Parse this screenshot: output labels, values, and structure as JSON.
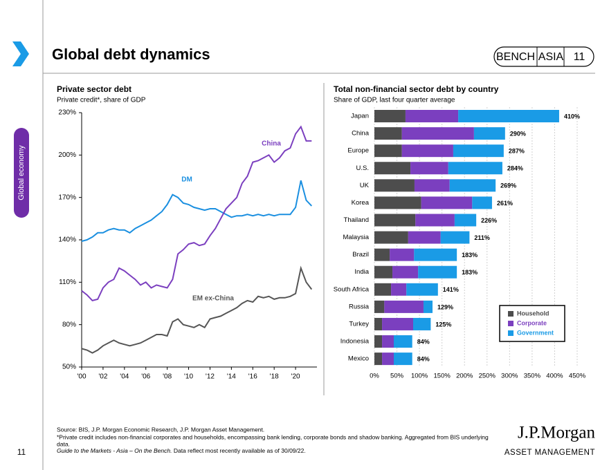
{
  "header": {
    "title": "Global debt dynamics",
    "badge": [
      "BENCH",
      "ASIA",
      "11"
    ]
  },
  "sidebar": {
    "section": "Global economy",
    "page_number": "11"
  },
  "footer": {
    "source": "Source: BIS, J.P. Morgan Economic Research, J.P. Morgan Asset Management.",
    "note": "*Private credit includes non-financial corporates and households, encompassing bank lending, corporate bonds and shadow banking. Aggregated from BIS underlying",
    "note_cont": "data.",
    "guide_italic": "Guide to the Markets - Asia – On the Bench.",
    "guide_rest": " Data reflect most recently available as of 30/09/22."
  },
  "logo": {
    "brand": "J.P.Morgan",
    "division": "ASSET MANAGEMENT"
  },
  "chart_data": [
    {
      "type": "line",
      "title": "Private sector debt",
      "subtitle": "Private credit*, share of GDP",
      "x": [
        2000,
        2000.5,
        2001,
        2001.5,
        2002,
        2002.5,
        2003,
        2003.5,
        2004,
        2004.5,
        2005,
        2005.5,
        2006,
        2006.5,
        2007,
        2007.5,
        2008,
        2008.5,
        2009,
        2009.5,
        2010,
        2010.5,
        2011,
        2011.5,
        2012,
        2012.5,
        2013,
        2013.5,
        2014,
        2014.5,
        2015,
        2015.5,
        2016,
        2016.5,
        2017,
        2017.5,
        2018,
        2018.5,
        2019,
        2019.5,
        2020,
        2020.5,
        2021,
        2021.5
      ],
      "series": [
        {
          "name": "DM",
          "color": "#1a8fe0",
          "values": [
            139,
            140,
            142,
            145,
            145,
            147,
            148,
            147,
            147,
            145,
            148,
            150,
            152,
            154,
            157,
            160,
            165,
            172,
            170,
            166,
            165,
            163,
            162,
            161,
            162,
            162,
            160,
            158,
            156,
            157,
            157,
            158,
            157,
            158,
            157,
            158,
            157,
            158,
            158,
            158,
            163,
            182,
            168,
            164
          ]
        },
        {
          "name": "China",
          "color": "#7b3fbf",
          "values": [
            104,
            101,
            97,
            98,
            106,
            110,
            112,
            120,
            118,
            115,
            112,
            108,
            110,
            106,
            108,
            107,
            106,
            112,
            130,
            133,
            137,
            138,
            136,
            137,
            143,
            148,
            155,
            162,
            166,
            170,
            180,
            185,
            195,
            196,
            198,
            200,
            195,
            198,
            203,
            205,
            215,
            220,
            210,
            210
          ]
        },
        {
          "name": "EM ex-China",
          "color": "#555555",
          "values": [
            63,
            62,
            60,
            62,
            65,
            67,
            69,
            67,
            66,
            65,
            66,
            67,
            69,
            71,
            73,
            73,
            72,
            82,
            84,
            80,
            79,
            78,
            80,
            78,
            84,
            85,
            86,
            88,
            90,
            92,
            95,
            97,
            96,
            100,
            99,
            100,
            98,
            99,
            99,
            100,
            102,
            120,
            110,
            105
          ]
        }
      ],
      "xlim": [
        2000,
        2022
      ],
      "xticks": [
        {
          "value": 2000,
          "label": "'00"
        },
        {
          "value": 2002,
          "label": "'02"
        },
        {
          "value": 2004,
          "label": "'04"
        },
        {
          "value": 2006,
          "label": "'06"
        },
        {
          "value": 2008,
          "label": "'08"
        },
        {
          "value": 2010,
          "label": "'10"
        },
        {
          "value": 2012,
          "label": "'12"
        },
        {
          "value": 2014,
          "label": "'14"
        },
        {
          "value": 2016,
          "label": "'16"
        },
        {
          "value": 2018,
          "label": "'18"
        },
        {
          "value": 2020,
          "label": "'20"
        }
      ],
      "ylim": [
        50,
        230
      ],
      "yticks": [
        {
          "value": 50,
          "label": "50%"
        },
        {
          "value": 80,
          "label": "80%"
        },
        {
          "value": 110,
          "label": "110%"
        },
        {
          "value": 140,
          "label": "140%"
        },
        {
          "value": 170,
          "label": "170%"
        },
        {
          "value": 200,
          "label": "200%"
        },
        {
          "value": 230,
          "label": "230%"
        }
      ]
    },
    {
      "type": "bar",
      "orientation": "horizontal",
      "stacked": true,
      "title": "Total non-financial sector debt by country",
      "subtitle": "Share of GDP, last four quarter average",
      "categories": [
        "Japan",
        "China",
        "Europe",
        "U.S.",
        "UK",
        "Korea",
        "Thailand",
        "Malaysia",
        "Brazil",
        "India",
        "South Africa",
        "Russia",
        "Turkey",
        "Indonesia",
        "Mexico"
      ],
      "series": [
        {
          "name": "Household",
          "color": "#4d4d4d",
          "values": [
            69,
            61,
            61,
            80,
            89,
            104,
            91,
            75,
            34,
            40,
            37,
            22,
            17,
            17,
            17
          ]
        },
        {
          "name": "Corporate",
          "color": "#7b3fbf",
          "values": [
            117,
            160,
            114,
            84,
            78,
            113,
            87,
            72,
            54,
            57,
            34,
            87,
            69,
            26,
            26
          ]
        },
        {
          "name": "Government",
          "color": "#1a9be6",
          "values": [
            224,
            69,
            112,
            120,
            102,
            44,
            48,
            64,
            95,
            86,
            70,
            20,
            39,
            41,
            41
          ]
        }
      ],
      "totals": [
        410,
        290,
        287,
        284,
        269,
        261,
        226,
        211,
        183,
        183,
        141,
        129,
        125,
        84,
        84
      ],
      "total_labels": [
        "410%",
        "290%",
        "287%",
        "284%",
        "269%",
        "261%",
        "226%",
        "211%",
        "183%",
        "183%",
        "141%",
        "129%",
        "125%",
        "84%",
        "84%"
      ],
      "xlim": [
        0,
        450
      ],
      "xticks": [
        {
          "value": 0,
          "label": "0%"
        },
        {
          "value": 50,
          "label": "50%"
        },
        {
          "value": 100,
          "label": "100%"
        },
        {
          "value": 150,
          "label": "150%"
        },
        {
          "value": 200,
          "label": "200%"
        },
        {
          "value": 250,
          "label": "250%"
        },
        {
          "value": 300,
          "label": "300%"
        },
        {
          "value": 350,
          "label": "350%"
        },
        {
          "value": 400,
          "label": "400%"
        },
        {
          "value": 450,
          "label": "450%"
        }
      ],
      "grid": true,
      "legend": "lower right"
    }
  ]
}
